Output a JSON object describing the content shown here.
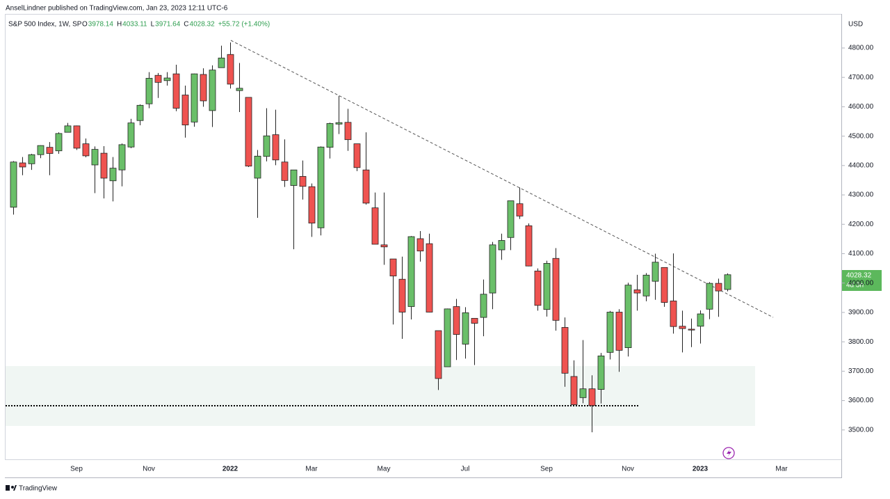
{
  "header": {
    "publisher": "AnselLindner published on TradingView.com, Jan 23, 2023 12:11 UTC-6"
  },
  "footer": {
    "brand": "TradingView"
  },
  "chart_data": {
    "type": "candlestick",
    "title": "S&P 500 Index, 1W, SP",
    "legend": [
      {
        "label": "O",
        "value": 3978.14
      },
      {
        "label": "H",
        "value": 4033.11
      },
      {
        "label": "L",
        "value": 3971.64
      },
      {
        "label": "C",
        "value": 4028.32
      }
    ],
    "change": "+55.72 (+1.40%)",
    "currency": "USD",
    "countdown": "4d 3h",
    "up_color": "#6abf69",
    "down_color": "#ef5350",
    "categories": [
      null,
      null,
      null,
      null,
      null,
      null,
      null,
      "Sep",
      null,
      null,
      null,
      null,
      null,
      null,
      null,
      "Nov",
      null,
      null,
      null,
      null,
      null,
      null,
      null,
      null,
      "2022",
      null,
      null,
      null,
      null,
      null,
      null,
      null,
      null,
      "Mar",
      null,
      null,
      null,
      null,
      null,
      null,
      null,
      "May",
      null,
      null,
      null,
      null,
      null,
      null,
      null,
      null,
      "Jul",
      null,
      null,
      null,
      null,
      null,
      null,
      null,
      null,
      "Sep",
      null,
      null,
      null,
      null,
      null,
      null,
      null,
      null,
      "Nov",
      null,
      null,
      null,
      null,
      null,
      null,
      null,
      "2023",
      null,
      null,
      null,
      null,
      null,
      null,
      null,
      null,
      "Mar"
    ],
    "open": [
      4258,
      4409,
      4406,
      4437,
      4462,
      4450,
      4513,
      4535,
      4474,
      4402,
      4442,
      4348,
      4385,
      4463,
      4553,
      4610,
      4707,
      4689,
      4712,
      4640,
      4548,
      4710,
      4587,
      4733,
      4778,
      4655,
      4632,
      4357,
      4431,
      4505,
      4412,
      4332,
      4363,
      4328,
      4188,
      4462,
      4541,
      4547,
      4474,
      4385,
      4256,
      4130,
      4082,
      4013,
      3920,
      4151,
      4134,
      3838,
      3715,
      3920,
      3792,
      3880,
      3883,
      3966,
      4113,
      4155,
      4270,
      4195,
      4041,
      3910,
      4084,
      3849,
      3682,
      3610,
      3640,
      3638,
      3764,
      3901,
      3780,
      3977,
      3956,
      4006,
      4053,
      3939,
      3853,
      3843,
      3853,
      3911,
      3999,
      3978.14,
      null,
      null,
      null,
      null,
      null,
      null
    ],
    "high": [
      4415,
      4429,
      4440,
      4469,
      4480,
      4513,
      4545,
      4536,
      4492,
      4465,
      4466,
      4429,
      4475,
      4559,
      4608,
      4718,
      4715,
      4718,
      4743,
      4672,
      4713,
      4731,
      4741,
      4808,
      4819,
      4749,
      4632,
      4453,
      4595,
      4590,
      4489,
      4385,
      4417,
      4339,
      4465,
      4546,
      4637,
      4593,
      4471,
      4513,
      4308,
      4308,
      4082,
      4090,
      4160,
      4177,
      4168,
      3838,
      3913,
      3946,
      3918,
      3880,
      4012,
      4140,
      4168,
      4280,
      4325,
      4203,
      4050,
      4076,
      4119,
      3883,
      3737,
      3806,
      3686,
      3762,
      3905,
      3911,
      4001,
      4028,
      4034,
      4100,
      4053,
      4101,
      3906,
      3879,
      3907,
      4003,
      4015,
      4033.11,
      null,
      null,
      null,
      null,
      null,
      null
    ],
    "low": [
      4233,
      4367,
      4385,
      4425,
      4367,
      4440,
      4513,
      4453,
      4428,
      4306,
      4288,
      4278,
      4329,
      4459,
      4537,
      4595,
      4630,
      4672,
      4585,
      4495,
      4532,
      4600,
      4531,
      4733,
      4662,
      4582,
      4395,
      4222,
      4414,
      4401,
      4327,
      4115,
      4284,
      4157,
      4162,
      4424,
      4507,
      4450,
      4381,
      4267,
      4132,
      4062,
      3859,
      3810,
      3876,
      4073,
      3900,
      3636,
      3715,
      3738,
      3743,
      3721,
      3819,
      3911,
      4079,
      4112,
      4218,
      4057,
      3906,
      3886,
      3838,
      3647,
      3584,
      3591,
      3492,
      3590,
      3740,
      3698,
      3750,
      3906,
      3938,
      3943,
      3919,
      3828,
      3764,
      3782,
      3794,
      3877,
      3885,
      3971.64,
      null,
      null,
      null,
      null,
      null,
      null
    ],
    "close": [
      4412,
      4395,
      4437,
      4468,
      4441,
      4509,
      4535,
      4459,
      4433,
      4455,
      4357,
      4391,
      4471,
      4545,
      4605,
      4697,
      4683,
      4698,
      4595,
      4538,
      4712,
      4620,
      4725,
      4766,
      4677,
      4663,
      4398,
      4432,
      4501,
      4419,
      4349,
      4385,
      4329,
      4204,
      4463,
      4543,
      4546,
      4488,
      4393,
      4272,
      4132,
      4123,
      4024,
      3901,
      4158,
      4109,
      3901,
      3675,
      3912,
      3825,
      3899,
      3863,
      3962,
      4130,
      4145,
      4280,
      4228,
      4058,
      3924,
      4067,
      3873,
      3693,
      3586,
      3640,
      3583,
      3752,
      3901,
      3771,
      3993,
      3966,
      4027,
      4071,
      3934,
      3852,
      3845,
      3840,
      3895,
      3999,
      3973,
      4028.32,
      null,
      null,
      null,
      null,
      null,
      null
    ],
    "ylim": [
      3400,
      4916
    ],
    "yticks": [
      {
        "value": 3500,
        "label": "3500.00"
      },
      {
        "value": 3600,
        "label": "3600.00"
      },
      {
        "value": 3700,
        "label": "3700.00"
      },
      {
        "value": 3800,
        "label": "3800.00"
      },
      {
        "value": 3900,
        "label": "3900.00"
      },
      {
        "value": 4000,
        "label": "4000.00"
      },
      {
        "value": 4100,
        "label": "4100.00"
      },
      {
        "value": 4200,
        "label": "4200.00"
      },
      {
        "value": 4300,
        "label": "4300.00"
      },
      {
        "value": 4400,
        "label": "4400.00"
      },
      {
        "value": 4500,
        "label": "4500.00"
      },
      {
        "value": 4600,
        "label": "4600.00"
      },
      {
        "value": 4700,
        "label": "4700.00"
      },
      {
        "value": 4800,
        "label": "4800.00"
      }
    ],
    "grid": false
  }
}
